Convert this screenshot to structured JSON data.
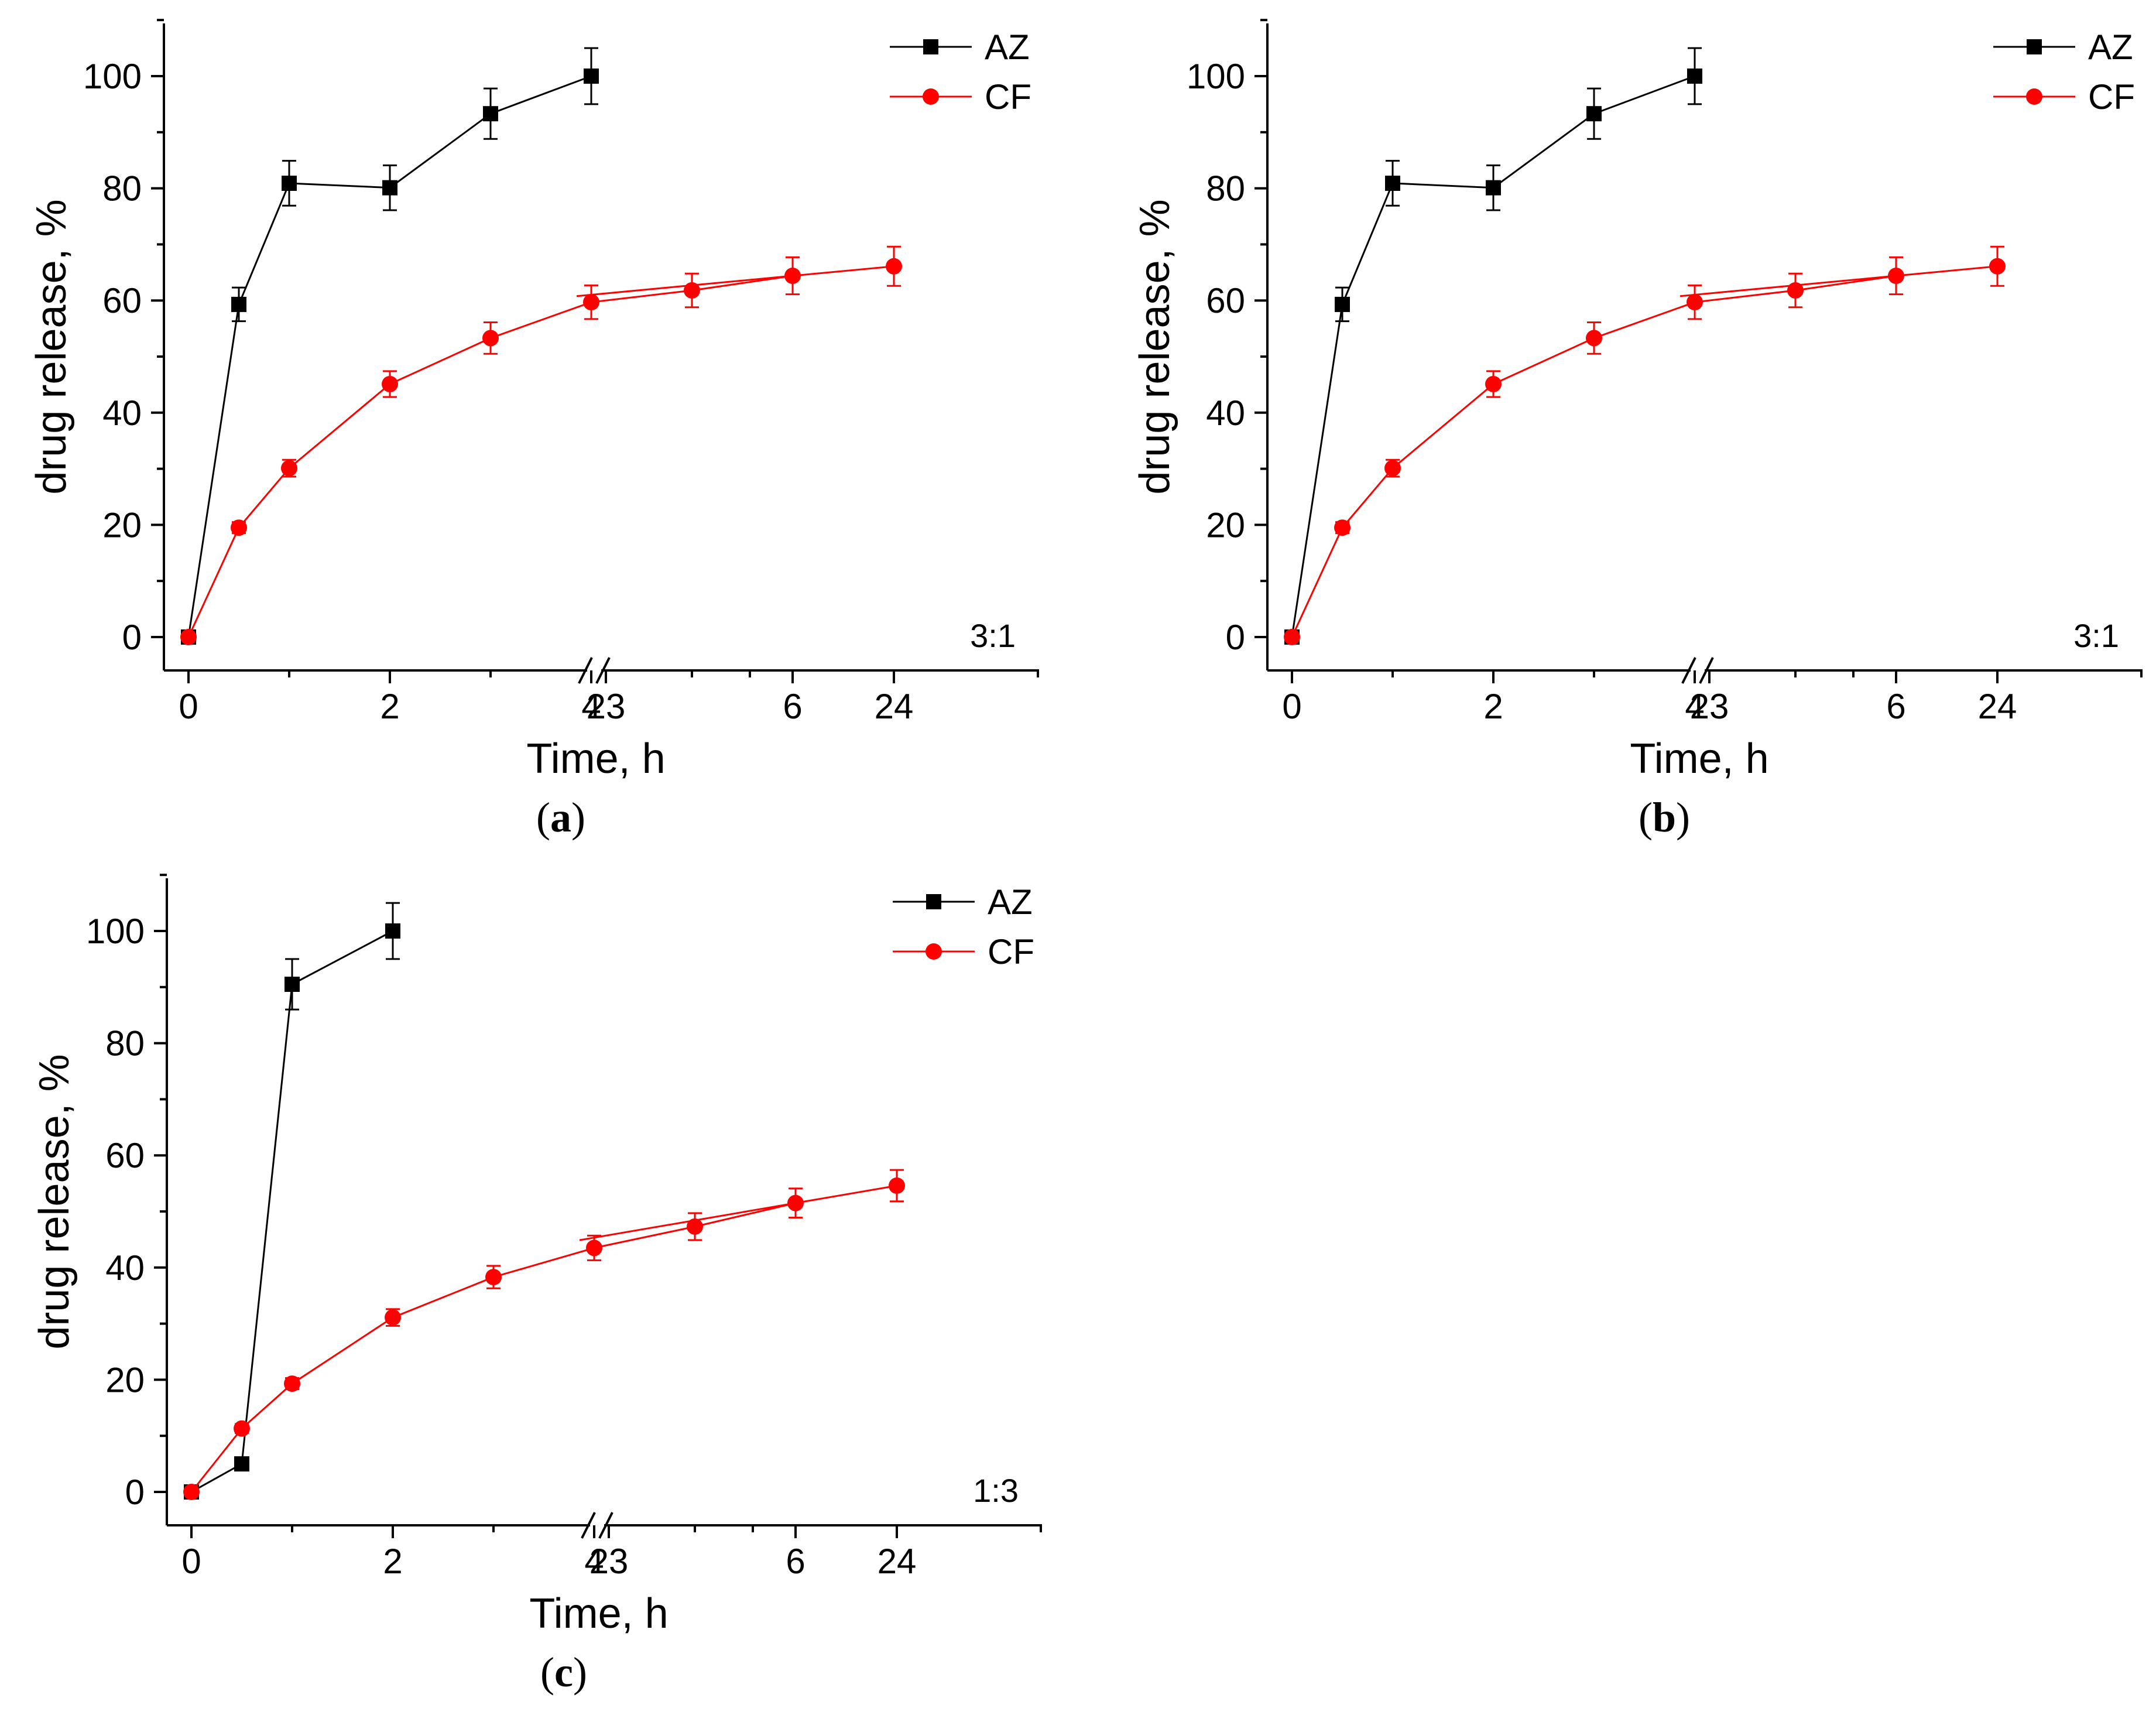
{
  "colors": {
    "AZ": "#000000",
    "CF": "#ff0000",
    "axis": "#000000"
  },
  "chart_data": [
    {
      "type": "line",
      "panel_label": "a",
      "xlabel": "Time, h",
      "ylabel": "drug release, %",
      "ylim": [
        -5,
        110
      ],
      "xbreak": {
        "between": [
          6,
          23
        ],
        "ticks": [
          "0",
          "2",
          "4",
          "6",
          "23",
          "24"
        ]
      },
      "yticks": [
        "0",
        "20",
        "40",
        "60",
        "80",
        "100"
      ],
      "annotation": "3:1",
      "legend_position": "top-right",
      "series": [
        {
          "name": "AZ",
          "marker": "square",
          "color": "#000000",
          "x": [
            0,
            0.5,
            1,
            2,
            3,
            4
          ],
          "y": [
            0,
            59.3,
            80.9,
            80.1,
            93.3,
            100
          ],
          "err": [
            0,
            3,
            4,
            4,
            4.5,
            5
          ]
        },
        {
          "name": "CF",
          "marker": "circle",
          "color": "#ff0000",
          "x": [
            0,
            0.5,
            1,
            2,
            3,
            4,
            5,
            6,
            24
          ],
          "y": [
            0,
            19.5,
            30.1,
            45.1,
            53.3,
            59.7,
            61.8,
            64.4,
            66.1
          ],
          "err": [
            0,
            1,
            1.5,
            2.3,
            2.8,
            3,
            3,
            3.3,
            3.5
          ]
        }
      ]
    },
    {
      "type": "line",
      "panel_label": "b",
      "xlabel": "Time, h",
      "ylabel": "drug release, %",
      "ylim": [
        -5,
        110
      ],
      "xbreak": {
        "between": [
          6,
          23
        ],
        "ticks": [
          "0",
          "2",
          "4",
          "6",
          "23",
          "24"
        ]
      },
      "yticks": [
        "0",
        "20",
        "40",
        "60",
        "80",
        "100"
      ],
      "annotation": "3:1",
      "legend_position": "top-right",
      "series": [
        {
          "name": "AZ",
          "marker": "square",
          "color": "#000000",
          "x": [
            0,
            0.5,
            1,
            2,
            3,
            4
          ],
          "y": [
            0,
            59.3,
            80.9,
            80.1,
            93.3,
            100
          ],
          "err": [
            0,
            3,
            4,
            4,
            4.5,
            5
          ]
        },
        {
          "name": "CF",
          "marker": "circle",
          "color": "#ff0000",
          "x": [
            0,
            0.5,
            1,
            2,
            3,
            4,
            5,
            6,
            24
          ],
          "y": [
            0,
            19.5,
            30.1,
            45.1,
            53.3,
            59.7,
            61.8,
            64.4,
            66.1
          ],
          "err": [
            0,
            1,
            1.5,
            2.3,
            2.8,
            3,
            3,
            3.3,
            3.5
          ]
        }
      ]
    },
    {
      "type": "line",
      "panel_label": "c",
      "xlabel": "Time, h",
      "ylabel": "drug release, %",
      "ylim": [
        -5,
        110
      ],
      "xbreak": {
        "between": [
          6,
          23
        ],
        "ticks": [
          "0",
          "2",
          "4",
          "6",
          "23",
          "24"
        ]
      },
      "yticks": [
        "0",
        "20",
        "40",
        "60",
        "80",
        "100"
      ],
      "annotation": "1:3",
      "legend_position": "top-right",
      "series": [
        {
          "name": "AZ",
          "marker": "square",
          "color": "#000000",
          "x": [
            0,
            0.5,
            1,
            2
          ],
          "y": [
            0,
            5,
            90.5,
            100
          ],
          "err": [
            0,
            0,
            4.5,
            5
          ]
        },
        {
          "name": "CF",
          "marker": "circle",
          "color": "#ff0000",
          "x": [
            0,
            0.5,
            1,
            2,
            3,
            4,
            5,
            6,
            24
          ],
          "y": [
            0,
            11.3,
            19.3,
            31.1,
            38.3,
            43.5,
            47.3,
            51.5,
            54.6
          ],
          "err": [
            0,
            0.8,
            1,
            1.5,
            2,
            2.2,
            2.4,
            2.6,
            2.8
          ]
        }
      ]
    }
  ]
}
